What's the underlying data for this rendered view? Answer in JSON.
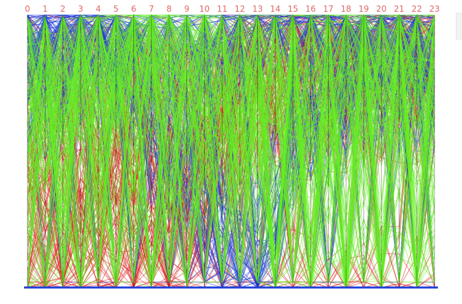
{
  "chart_data": {
    "type": "parallel-coordinates",
    "title": "",
    "axes": [
      "0",
      "1",
      "2",
      "3",
      "4",
      "5",
      "6",
      "7",
      "8",
      "9",
      "10",
      "11",
      "12",
      "13",
      "14",
      "15",
      "16",
      "17",
      "18",
      "19",
      "20",
      "21",
      "22",
      "23"
    ],
    "axis_label_color": "#e06666",
    "axis_color": "#000000",
    "grid": false,
    "legend": "none",
    "y_range": [
      0,
      1
    ],
    "series": [
      {
        "color": "#dd2222",
        "lines": [
          [
            0.0,
            0.0,
            0.02,
            0.0,
            0.03,
            0.0,
            0.0,
            0.02,
            0.0,
            0.0,
            0.0,
            0.0,
            0.0,
            0.0,
            0.0,
            0.0,
            0.0,
            0.0,
            0.0,
            0.0,
            0.0,
            0.0,
            0.0,
            0.0
          ],
          [
            0.55,
            0.58,
            0.62,
            0.6,
            0.55,
            0.5,
            0.45,
            0.4,
            0.38,
            0.4,
            0.45,
            0.55,
            0.7,
            0.8,
            0.85,
            0.75,
            0.7,
            0.72,
            0.75,
            0.78,
            0.8,
            0.82,
            0.8,
            0.78
          ],
          [
            0.75,
            0.78,
            0.8,
            0.82,
            0.85,
            0.8,
            0.7,
            0.55,
            0.45,
            0.5,
            0.6,
            0.7,
            0.75,
            0.78,
            0.8,
            0.82,
            0.85,
            0.84,
            0.83,
            0.86,
            0.88,
            0.86,
            0.84,
            0.82
          ],
          [
            0.35,
            0.4,
            0.5,
            0.3,
            0.2,
            0.1,
            0.05,
            0.25,
            0.1,
            0.05,
            0.3,
            0.6,
            0.9,
            0.95,
            1.0,
            0.92,
            0.88,
            0.9,
            0.92,
            0.93,
            0.95,
            0.94,
            0.93,
            0.96
          ],
          [
            0.9,
            0.92,
            0.95,
            0.97,
            0.96,
            0.94,
            0.9,
            0.85,
            0.8,
            0.85,
            0.88,
            0.9,
            0.93,
            0.95,
            0.97,
            0.98,
            0.97,
            0.96,
            0.95,
            0.97,
            0.98,
            0.99,
            0.98,
            0.97
          ],
          [
            0.2,
            0.1,
            0.05,
            0.4,
            0.3,
            0.45,
            0.35,
            0.6,
            0.4,
            0.3,
            0.5,
            0.6,
            0.7,
            0.7,
            0.75,
            0.8,
            0.78,
            0.82,
            0.8,
            0.84,
            0.86,
            0.83,
            0.85,
            0.8
          ],
          [
            0.65,
            0.7,
            0.6,
            0.55,
            0.5,
            0.55,
            0.65,
            0.7,
            0.72,
            0.65,
            0.55,
            0.5,
            0.45,
            0.6,
            0.7,
            0.65,
            0.6,
            0.62,
            0.64,
            0.7,
            0.66,
            0.68,
            0.7,
            0.72
          ],
          [
            0.45,
            0.3,
            0.2,
            0.15,
            0.25,
            0.35,
            0.2,
            0.3,
            0.2,
            0.3,
            0.4,
            0.45,
            0.55,
            0.65,
            0.72,
            0.68,
            0.74,
            0.7,
            0.76,
            0.72,
            0.74,
            0.78,
            0.76,
            0.7
          ]
        ]
      },
      {
        "color": "#1f3fd8",
        "lines": [
          [
            0.88,
            0.9,
            0.93,
            0.95,
            0.96,
            0.95,
            0.93,
            0.92,
            0.9,
            0.88,
            0.9,
            0.92,
            0.94,
            0.96,
            0.97,
            0.98,
            0.97,
            0.96,
            0.97,
            0.98,
            0.99,
            0.98,
            0.97,
            0.98
          ],
          [
            0.75,
            0.8,
            0.82,
            0.85,
            0.82,
            0.8,
            0.75,
            0.6,
            0.5,
            0.4,
            0.3,
            0.2,
            0.1,
            0.05,
            0.3,
            0.6,
            0.65,
            0.7,
            0.72,
            0.75,
            0.78,
            0.8,
            0.79,
            0.8
          ],
          [
            0.92,
            0.95,
            0.96,
            0.97,
            0.98,
            0.96,
            0.92,
            0.88,
            0.85,
            0.86,
            0.88,
            0.9,
            0.92,
            0.94,
            0.96,
            0.97,
            0.98,
            0.97,
            0.96,
            0.97,
            0.98,
            0.99,
            0.97,
            0.96
          ],
          [
            0.7,
            0.72,
            0.75,
            0.8,
            0.85,
            0.82,
            0.7,
            0.5,
            0.45,
            0.4,
            0.35,
            0.3,
            0.25,
            0.2,
            0.4,
            0.6,
            0.7,
            0.72,
            0.74,
            0.76,
            0.74,
            0.72,
            0.73,
            0.75
          ],
          [
            0.96,
            0.97,
            0.98,
            0.99,
            0.99,
            0.98,
            0.97,
            0.96,
            0.95,
            0.96,
            0.97,
            0.98,
            0.99,
            0.99,
            0.99,
            0.99,
            0.99,
            0.98,
            0.99,
            0.99,
            0.99,
            0.99,
            0.99,
            0.99
          ],
          [
            0.8,
            0.85,
            0.88,
            0.86,
            0.84,
            0.83,
            0.8,
            0.7,
            0.6,
            0.55,
            0.4,
            0.1,
            0.05,
            0.0,
            0.2,
            0.5,
            0.6,
            0.65,
            0.7,
            0.72,
            0.75,
            0.77,
            0.76,
            0.74
          ]
        ]
      },
      {
        "color": "#66ee22",
        "lines": [
          [
            0.55,
            0.58,
            0.62,
            0.7,
            0.75,
            0.8,
            0.82,
            0.78,
            0.7,
            0.65,
            0.6,
            0.58,
            0.55,
            0.5,
            0.45,
            0.4,
            0.42,
            0.45,
            0.5,
            0.55,
            0.6,
            0.58,
            0.55,
            0.52
          ],
          [
            0.6,
            0.62,
            0.65,
            0.72,
            0.8,
            0.85,
            0.88,
            0.83,
            0.8,
            0.75,
            0.7,
            0.68,
            0.65,
            0.62,
            0.6,
            0.58,
            0.6,
            0.62,
            0.64,
            0.66,
            0.65,
            0.64,
            0.62,
            0.6
          ],
          [
            0.65,
            0.7,
            0.8,
            0.88,
            0.9,
            0.92,
            0.95,
            0.97,
            0.96,
            0.95,
            0.94,
            0.92,
            0.9,
            0.92,
            0.95,
            0.96,
            0.97,
            0.98,
            0.97,
            0.96,
            0.95,
            0.94,
            0.93,
            0.92
          ],
          [
            0.0,
            0.05,
            0.15,
            0.05,
            0.3,
            0.15,
            0.4,
            0.1,
            0.35,
            0.2,
            0.45,
            0.3,
            0.55,
            0.4,
            0.0,
            0.2,
            0.05,
            0.3,
            0.0,
            0.25,
            0.05,
            0.35,
            0.0,
            0.3
          ],
          [
            0.85,
            0.8,
            0.2,
            0.9,
            0.3,
            0.85,
            0.35,
            0.95,
            0.25,
            0.8,
            0.4,
            0.9,
            0.3,
            0.85,
            0.1,
            0.95,
            0.0,
            0.9,
            0.05,
            0.88,
            0.1,
            0.92,
            0.05,
            0.9
          ],
          [
            0.5,
            0.55,
            0.6,
            0.65,
            0.7,
            0.75,
            0.73,
            0.72,
            0.7,
            0.68,
            0.66,
            0.7,
            0.72,
            0.74,
            0.75,
            0.78,
            0.8,
            0.82,
            0.83,
            0.84,
            0.86,
            0.85,
            0.84,
            0.83
          ],
          [
            0.7,
            0.72,
            0.74,
            0.78,
            0.82,
            0.86,
            0.9,
            0.92,
            0.9,
            0.88,
            0.85,
            0.83,
            0.8,
            0.78,
            0.76,
            0.74,
            0.75,
            0.76,
            0.78,
            0.8,
            0.82,
            0.8,
            0.78,
            0.76
          ],
          [
            0.4,
            0.45,
            0.5,
            0.55,
            0.65,
            0.7,
            0.8,
            0.85,
            0.82,
            0.78,
            0.74,
            0.7,
            0.68,
            0.65,
            0.6,
            0.55,
            0.58,
            0.62,
            0.66,
            0.7,
            0.72,
            0.7,
            0.68,
            0.66
          ]
        ]
      }
    ]
  }
}
